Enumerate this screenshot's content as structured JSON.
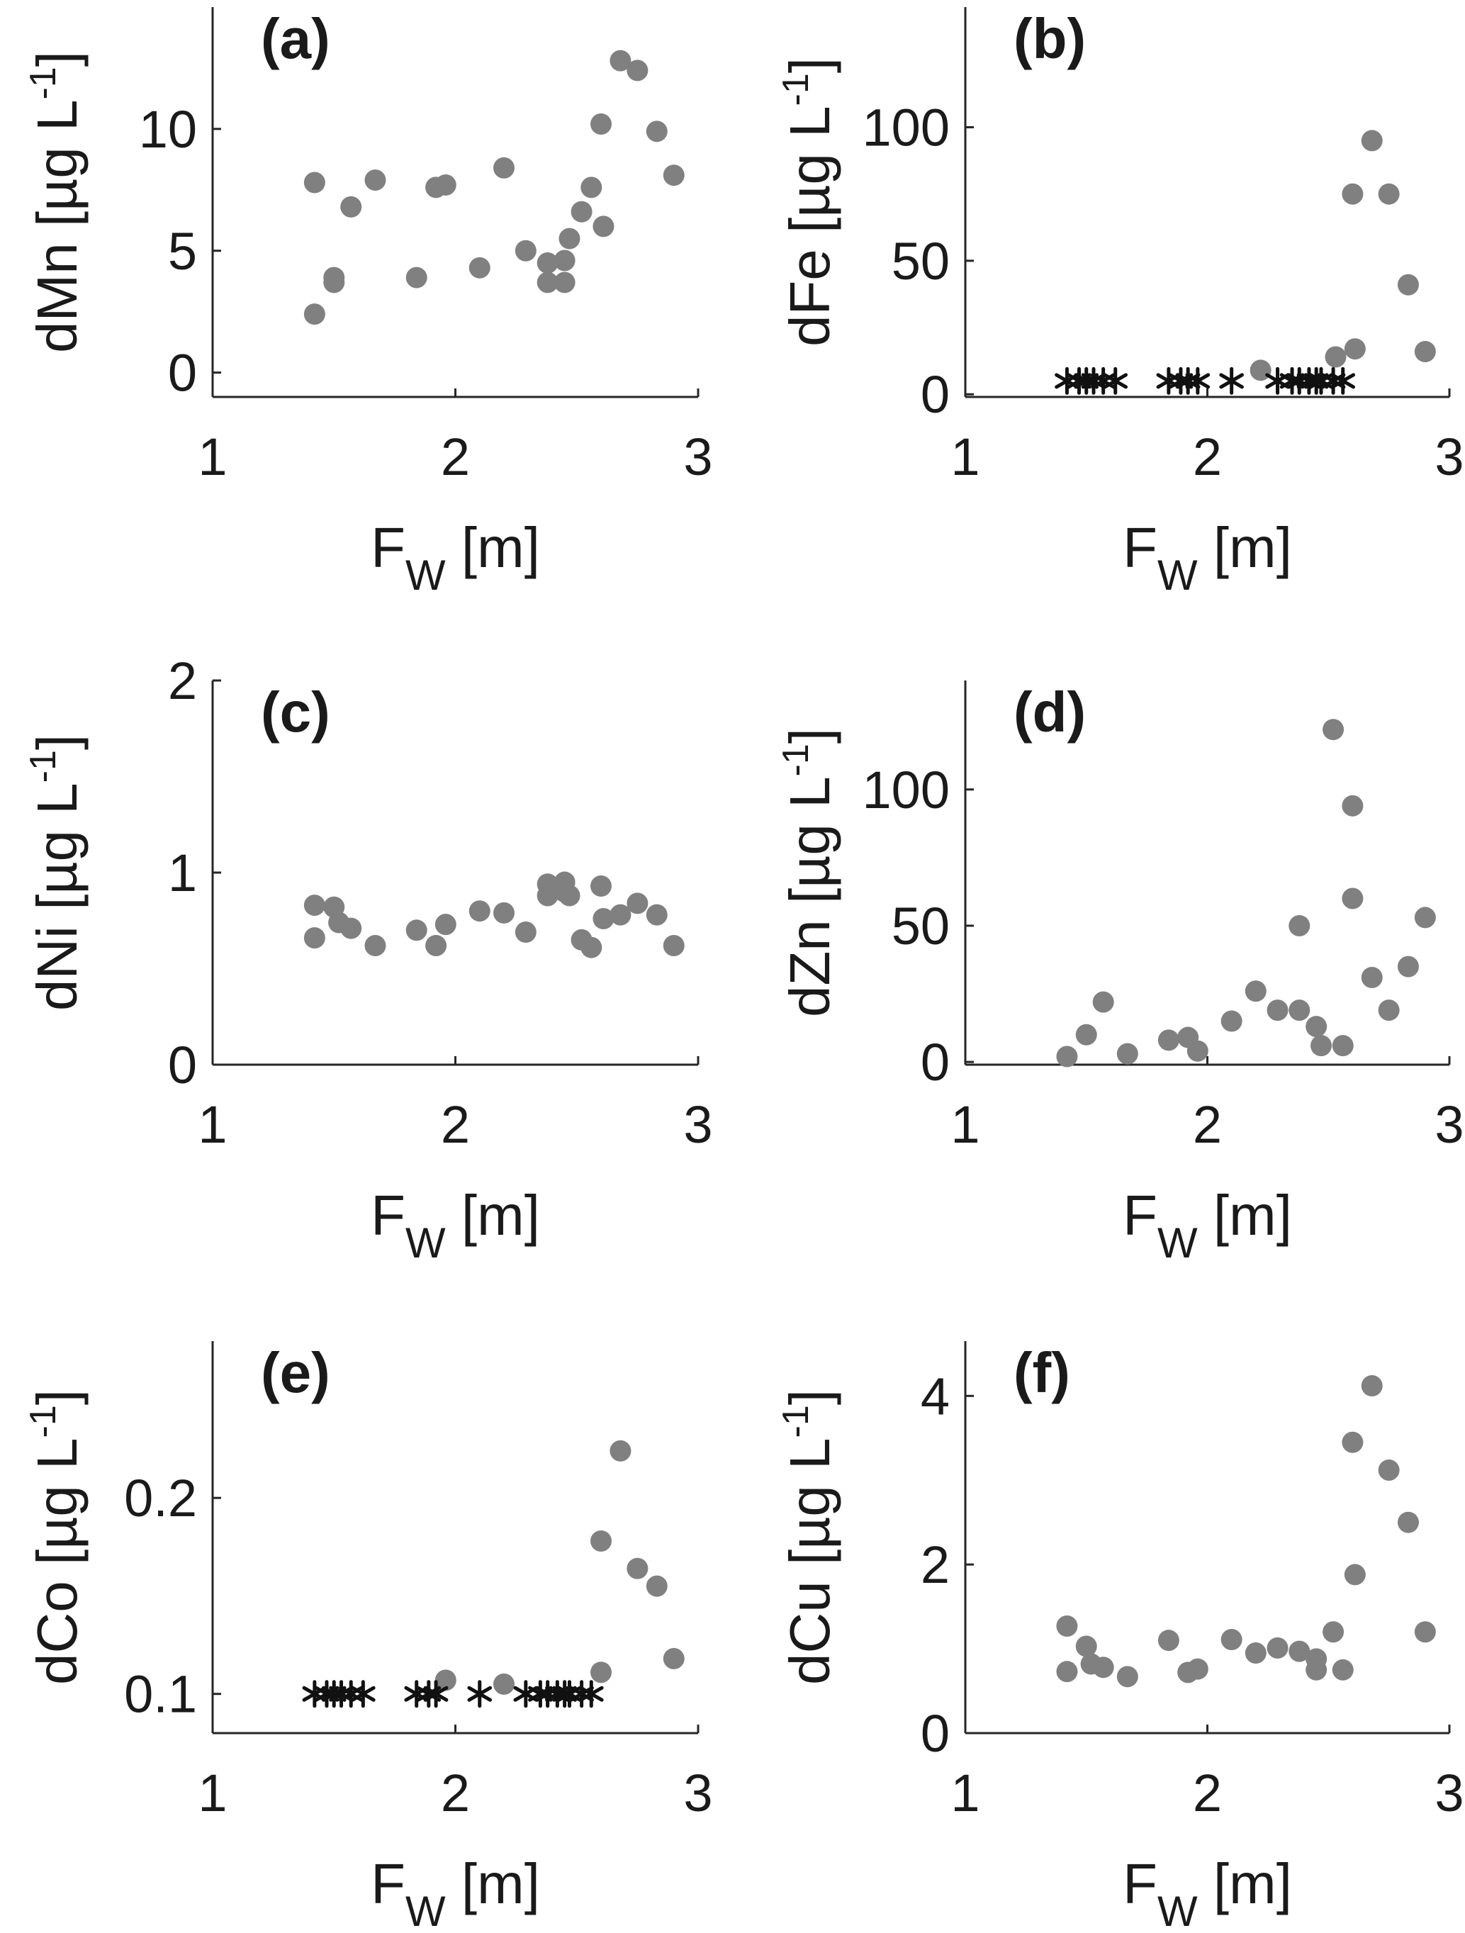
{
  "colors": {
    "point": "#808080",
    "star": "#111111",
    "axis": "#262626",
    "text": "#1a1a1a"
  },
  "chart_data": [
    {
      "id": "a",
      "type": "scatter",
      "panel_label": "(a)",
      "ylabel_prefix": "dMn [µg L",
      "ylabel_sup": "-1",
      "ylabel_suffix": "]",
      "xlabel_main": "F",
      "xlabel_sub": "W",
      "xlabel_unit": " [m]",
      "xlim": [
        1,
        3
      ],
      "ylim": [
        -1,
        15
      ],
      "xticks": [
        1,
        2,
        3
      ],
      "xtick_labels": [
        "1",
        "2",
        "3"
      ],
      "yticks": [
        0,
        5,
        10
      ],
      "ytick_labels": [
        "0",
        "5",
        "10"
      ],
      "points": [
        [
          1.42,
          2.4
        ],
        [
          1.42,
          7.8
        ],
        [
          1.5,
          3.7
        ],
        [
          1.5,
          3.9
        ],
        [
          1.57,
          6.8
        ],
        [
          1.67,
          7.9
        ],
        [
          1.84,
          3.9
        ],
        [
          1.92,
          7.6
        ],
        [
          1.96,
          7.7
        ],
        [
          2.1,
          4.3
        ],
        [
          2.2,
          8.4
        ],
        [
          2.29,
          5.0
        ],
        [
          2.38,
          3.7
        ],
        [
          2.38,
          4.5
        ],
        [
          2.45,
          3.7
        ],
        [
          2.45,
          4.6
        ],
        [
          2.47,
          5.5
        ],
        [
          2.52,
          6.6
        ],
        [
          2.56,
          7.6
        ],
        [
          2.6,
          10.2
        ],
        [
          2.61,
          6.0
        ],
        [
          2.68,
          12.8
        ],
        [
          2.75,
          12.4
        ],
        [
          2.83,
          9.9
        ],
        [
          2.9,
          8.1
        ]
      ],
      "stars": []
    },
    {
      "id": "b",
      "type": "scatter",
      "panel_label": "(b)",
      "ylabel_prefix": "dFe [µg L",
      "ylabel_sup": "-1",
      "ylabel_suffix": "]",
      "xlabel_main": "F",
      "xlabel_sub": "W",
      "xlabel_unit": " [m]",
      "xlim": [
        1,
        3
      ],
      "ylim": [
        -1,
        145
      ],
      "xticks": [
        1,
        2,
        3
      ],
      "xtick_labels": [
        "1",
        "2",
        "3"
      ],
      "yticks": [
        0,
        50,
        100
      ],
      "ytick_labels": [
        "0",
        "50",
        "100"
      ],
      "points": [
        [
          2.22,
          9
        ],
        [
          2.53,
          14
        ],
        [
          2.6,
          75
        ],
        [
          2.61,
          17
        ],
        [
          2.68,
          95
        ],
        [
          2.75,
          75
        ],
        [
          2.83,
          41
        ],
        [
          2.9,
          16
        ]
      ],
      "stars": [
        [
          1.42,
          5
        ],
        [
          1.47,
          5
        ],
        [
          1.5,
          5
        ],
        [
          1.53,
          5
        ],
        [
          1.57,
          5
        ],
        [
          1.62,
          5
        ],
        [
          1.84,
          5
        ],
        [
          1.89,
          5
        ],
        [
          1.92,
          5
        ],
        [
          1.96,
          5
        ],
        [
          2.1,
          5
        ],
        [
          2.29,
          5
        ],
        [
          2.35,
          5
        ],
        [
          2.38,
          5
        ],
        [
          2.42,
          5
        ],
        [
          2.45,
          5
        ],
        [
          2.47,
          5
        ],
        [
          2.52,
          5
        ],
        [
          2.56,
          5
        ]
      ]
    },
    {
      "id": "c",
      "type": "scatter",
      "panel_label": "(c)",
      "ylabel_prefix": "dNi [µg L",
      "ylabel_sup": "-1",
      "ylabel_suffix": "]",
      "xlabel_main": "F",
      "xlabel_sub": "W",
      "xlabel_unit": " [m]",
      "xlim": [
        1,
        3
      ],
      "ylim": [
        0,
        2
      ],
      "xticks": [
        1,
        2,
        3
      ],
      "xtick_labels": [
        "1",
        "2",
        "3"
      ],
      "yticks": [
        0,
        1,
        2
      ],
      "ytick_labels": [
        "0",
        "1",
        "2"
      ],
      "points": [
        [
          1.42,
          0.83
        ],
        [
          1.42,
          0.66
        ],
        [
          1.5,
          0.82
        ],
        [
          1.52,
          0.74
        ],
        [
          1.57,
          0.71
        ],
        [
          1.67,
          0.62
        ],
        [
          1.84,
          0.7
        ],
        [
          1.92,
          0.62
        ],
        [
          1.96,
          0.73
        ],
        [
          2.1,
          0.8
        ],
        [
          2.2,
          0.79
        ],
        [
          2.29,
          0.69
        ],
        [
          2.38,
          0.94
        ],
        [
          2.38,
          0.88
        ],
        [
          2.45,
          0.95
        ],
        [
          2.45,
          0.9
        ],
        [
          2.47,
          0.88
        ],
        [
          2.52,
          0.65
        ],
        [
          2.56,
          0.61
        ],
        [
          2.6,
          0.93
        ],
        [
          2.61,
          0.76
        ],
        [
          2.68,
          0.78
        ],
        [
          2.75,
          0.84
        ],
        [
          2.83,
          0.78
        ],
        [
          2.9,
          0.62
        ]
      ],
      "stars": []
    },
    {
      "id": "d",
      "type": "scatter",
      "panel_label": "(d)",
      "ylabel_prefix": "dZn [µg L",
      "ylabel_sup": "-1",
      "ylabel_suffix": "]",
      "xlabel_main": "F",
      "xlabel_sub": "W",
      "xlabel_unit": " [m]",
      "xlim": [
        1,
        3
      ],
      "ylim": [
        -1,
        140
      ],
      "xticks": [
        1,
        2,
        3
      ],
      "xtick_labels": [
        "1",
        "2",
        "3"
      ],
      "yticks": [
        0,
        50,
        100
      ],
      "ytick_labels": [
        "0",
        "50",
        "100"
      ],
      "points": [
        [
          1.42,
          2
        ],
        [
          1.5,
          10
        ],
        [
          1.57,
          22
        ],
        [
          1.67,
          3
        ],
        [
          1.84,
          8
        ],
        [
          1.92,
          9
        ],
        [
          1.96,
          4
        ],
        [
          2.1,
          15
        ],
        [
          2.2,
          26
        ],
        [
          2.29,
          19
        ],
        [
          2.38,
          19
        ],
        [
          2.38,
          50
        ],
        [
          2.45,
          13
        ],
        [
          2.47,
          6
        ],
        [
          2.56,
          6
        ],
        [
          2.52,
          122
        ],
        [
          2.6,
          94
        ],
        [
          2.6,
          60
        ],
        [
          2.68,
          31
        ],
        [
          2.75,
          19
        ],
        [
          2.83,
          35
        ],
        [
          2.9,
          53
        ]
      ],
      "stars": []
    },
    {
      "id": "e",
      "type": "scatter",
      "panel_label": "(e)",
      "ylabel_prefix": "dCo [µg L",
      "ylabel_sup": "-1",
      "ylabel_suffix": "]",
      "xlabel_main": "F",
      "xlabel_sub": "W",
      "xlabel_unit": " [m]",
      "xlim": [
        1,
        3
      ],
      "ylim": [
        0.08,
        0.28
      ],
      "xticks": [
        1,
        2,
        3
      ],
      "xtick_labels": [
        "1",
        "2",
        "3"
      ],
      "yticks": [
        0.1,
        0.2
      ],
      "ytick_labels": [
        "0.1",
        "0.2"
      ],
      "points": [
        [
          1.96,
          0.107
        ],
        [
          2.2,
          0.105
        ],
        [
          2.6,
          0.111
        ],
        [
          2.6,
          0.178
        ],
        [
          2.68,
          0.224
        ],
        [
          2.75,
          0.164
        ],
        [
          2.83,
          0.155
        ],
        [
          2.9,
          0.118
        ]
      ],
      "stars": [
        [
          1.42,
          0.1
        ],
        [
          1.47,
          0.1
        ],
        [
          1.5,
          0.1
        ],
        [
          1.53,
          0.1
        ],
        [
          1.57,
          0.1
        ],
        [
          1.62,
          0.1
        ],
        [
          1.84,
          0.1
        ],
        [
          1.89,
          0.1
        ],
        [
          1.92,
          0.1
        ],
        [
          2.1,
          0.1
        ],
        [
          2.29,
          0.1
        ],
        [
          2.35,
          0.1
        ],
        [
          2.38,
          0.1
        ],
        [
          2.42,
          0.1
        ],
        [
          2.45,
          0.1
        ],
        [
          2.47,
          0.1
        ],
        [
          2.52,
          0.1
        ],
        [
          2.56,
          0.1
        ]
      ]
    },
    {
      "id": "f",
      "type": "scatter",
      "panel_label": "(f)",
      "ylabel_prefix": "dCu [µg L",
      "ylabel_sup": "-1",
      "ylabel_suffix": "]",
      "xlabel_main": "F",
      "xlabel_sub": "W",
      "xlabel_unit": " [m]",
      "xlim": [
        1,
        3
      ],
      "ylim": [
        0,
        4.65
      ],
      "xticks": [
        1,
        2,
        3
      ],
      "xtick_labels": [
        "1",
        "2",
        "3"
      ],
      "yticks": [
        0,
        2,
        4
      ],
      "ytick_labels": [
        "0",
        "2",
        "4"
      ],
      "points": [
        [
          1.42,
          1.27
        ],
        [
          1.42,
          0.73
        ],
        [
          1.5,
          1.03
        ],
        [
          1.52,
          0.82
        ],
        [
          1.57,
          0.78
        ],
        [
          1.67,
          0.67
        ],
        [
          1.84,
          1.1
        ],
        [
          1.92,
          0.72
        ],
        [
          1.96,
          0.76
        ],
        [
          2.1,
          1.11
        ],
        [
          2.2,
          0.95
        ],
        [
          2.29,
          1.01
        ],
        [
          2.38,
          0.97
        ],
        [
          2.45,
          0.88
        ],
        [
          2.45,
          0.75
        ],
        [
          2.52,
          1.2
        ],
        [
          2.56,
          0.75
        ],
        [
          2.6,
          3.45
        ],
        [
          2.61,
          1.88
        ],
        [
          2.68,
          4.12
        ],
        [
          2.75,
          3.12
        ],
        [
          2.83,
          2.5
        ],
        [
          2.9,
          1.2
        ]
      ],
      "stars": []
    }
  ]
}
